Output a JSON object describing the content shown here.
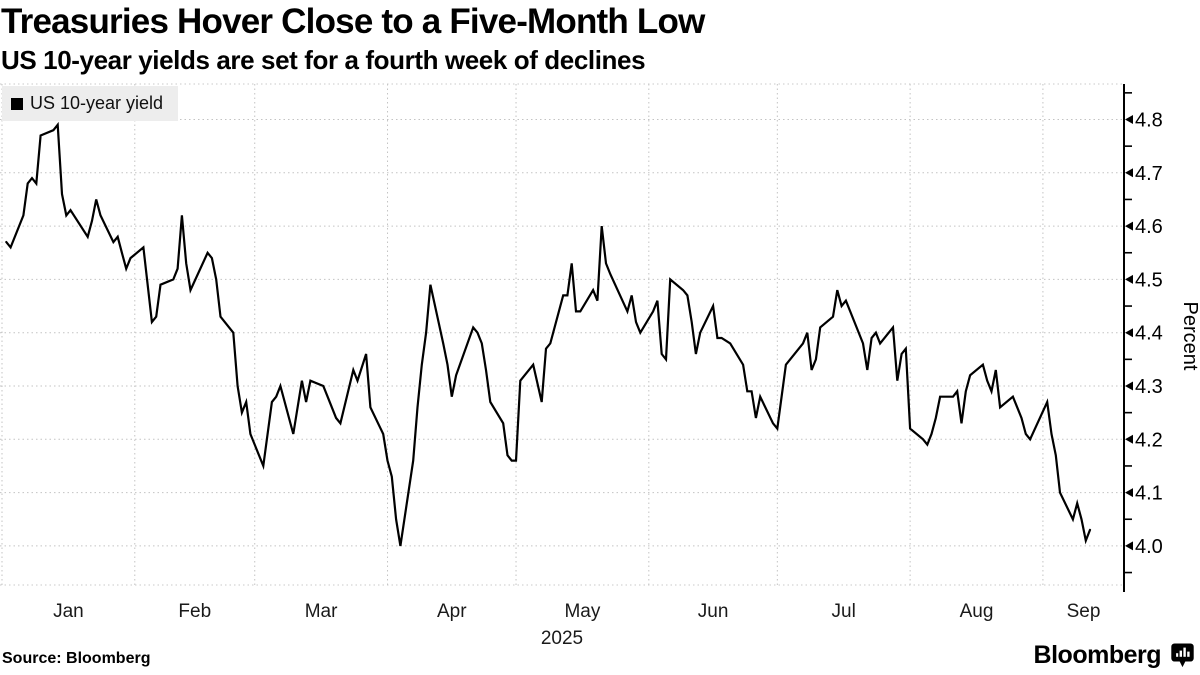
{
  "header": {
    "title": "Treasuries Hover Close to a Five-Month Low",
    "subtitle": "US 10-year yields are set for a fourth week of declines"
  },
  "legend": {
    "label": "US 10-year yield",
    "swatch_color": "#000000",
    "background": "#ededed"
  },
  "footer": {
    "source": "Source: Bloomberg",
    "logo_text": "Bloomberg",
    "logo_icon": "bloomberg-bubble-bars-icon"
  },
  "chart_data": {
    "type": "line",
    "title": "Treasuries Hover Close to a Five-Month Low",
    "subtitle": "US 10-year yields are set for a fourth week of declines",
    "x_axis": {
      "tick_labels": [
        "Jan",
        "Feb",
        "Mar",
        "Apr",
        "May",
        "Jun",
        "Jul",
        "Aug",
        "Sep"
      ],
      "year_label": "2025",
      "gridlines": "month-starts"
    },
    "y_axis": {
      "label": "Percent",
      "ticks": [
        4.0,
        4.1,
        4.2,
        4.3,
        4.4,
        4.5,
        4.6,
        4.7,
        4.8
      ],
      "minor_tick_step": 0.05,
      "ylim": [
        3.92,
        4.87
      ],
      "side": "right"
    },
    "grid": {
      "style": "dotted",
      "color": "#c3c3c3"
    },
    "line_color": "#000000",
    "series": [
      {
        "name": "US 10-year yield",
        "unit": "percent",
        "dates": [
          "1/2",
          "1/3",
          "1/6",
          "1/7",
          "1/8",
          "1/9",
          "1/10",
          "1/13",
          "1/14",
          "1/15",
          "1/16",
          "1/17",
          "1/21",
          "1/22",
          "1/23",
          "1/24",
          "1/27",
          "1/28",
          "1/29",
          "1/30",
          "1/31",
          "2/3",
          "2/5",
          "2/6",
          "2/7",
          "2/10",
          "2/11",
          "2/12",
          "2/13",
          "2/14",
          "2/18",
          "2/19",
          "2/20",
          "2/21",
          "2/24",
          "2/25",
          "2/26",
          "2/27",
          "2/28",
          "3/3",
          "3/5",
          "3/6",
          "3/7",
          "3/10",
          "3/12",
          "3/13",
          "3/14",
          "3/17",
          "3/18",
          "3/20",
          "3/21",
          "3/24",
          "3/25",
          "3/27",
          "3/28",
          "3/31",
          "4/1",
          "4/2",
          "4/3",
          "4/4",
          "4/7",
          "4/8",
          "4/9",
          "4/10",
          "4/11",
          "4/14",
          "4/15",
          "4/16",
          "4/17",
          "4/21",
          "4/22",
          "4/23",
          "4/24",
          "4/25",
          "4/28",
          "4/29",
          "4/30",
          "5/1",
          "5/2",
          "5/5",
          "5/7",
          "5/8",
          "5/9",
          "5/12",
          "5/13",
          "5/14",
          "5/15",
          "5/16",
          "5/19",
          "5/20",
          "5/21",
          "5/22",
          "5/23",
          "5/27",
          "5/28",
          "5/29",
          "5/30",
          "6/2",
          "6/3",
          "6/4",
          "6/5",
          "6/6",
          "6/9",
          "6/10",
          "6/11",
          "6/12",
          "6/13",
          "6/16",
          "6/17",
          "6/18",
          "6/20",
          "6/23",
          "6/24",
          "6/25",
          "6/26",
          "6/27",
          "6/30",
          "7/1",
          "7/2",
          "7/3",
          "7/7",
          "7/8",
          "7/9",
          "7/10",
          "7/11",
          "7/14",
          "7/15",
          "7/16",
          "7/17",
          "7/18",
          "7/21",
          "7/22",
          "7/23",
          "7/24",
          "7/25",
          "7/28",
          "7/29",
          "7/30",
          "7/31",
          "8/1",
          "8/4",
          "8/5",
          "8/6",
          "8/7",
          "8/8",
          "8/11",
          "8/12",
          "8/13",
          "8/14",
          "8/15",
          "8/18",
          "8/19",
          "8/20",
          "8/21",
          "8/22",
          "8/25",
          "8/26",
          "8/27",
          "8/28",
          "8/29",
          "9/2",
          "9/3",
          "9/4",
          "9/5",
          "9/8",
          "9/9",
          "9/10",
          "9/11",
          "9/12"
        ],
        "values": [
          4.57,
          4.56,
          4.62,
          4.68,
          4.69,
          4.68,
          4.77,
          4.78,
          4.79,
          4.66,
          4.62,
          4.63,
          4.58,
          4.61,
          4.65,
          4.62,
          4.57,
          4.58,
          4.55,
          4.52,
          4.54,
          4.56,
          4.42,
          4.43,
          4.49,
          4.5,
          4.52,
          4.62,
          4.53,
          4.48,
          4.55,
          4.54,
          4.5,
          4.43,
          4.4,
          4.3,
          4.25,
          4.27,
          4.21,
          4.15,
          4.27,
          4.28,
          4.3,
          4.21,
          4.31,
          4.27,
          4.31,
          4.3,
          4.28,
          4.24,
          4.23,
          4.33,
          4.31,
          4.36,
          4.26,
          4.21,
          4.16,
          4.13,
          4.05,
          4.0,
          4.16,
          4.26,
          4.34,
          4.4,
          4.49,
          4.38,
          4.34,
          4.28,
          4.32,
          4.41,
          4.4,
          4.38,
          4.33,
          4.27,
          4.23,
          4.17,
          4.16,
          4.16,
          4.31,
          4.34,
          4.27,
          4.37,
          4.38,
          4.47,
          4.47,
          4.53,
          4.44,
          4.44,
          4.48,
          4.46,
          4.6,
          4.53,
          4.51,
          4.44,
          4.47,
          4.42,
          4.4,
          4.44,
          4.46,
          4.36,
          4.35,
          4.5,
          4.48,
          4.47,
          4.42,
          4.36,
          4.4,
          4.45,
          4.39,
          4.39,
          4.38,
          4.34,
          4.29,
          4.29,
          4.24,
          4.28,
          4.23,
          4.22,
          4.28,
          4.34,
          4.38,
          4.4,
          4.33,
          4.35,
          4.41,
          4.43,
          4.48,
          4.45,
          4.46,
          4.44,
          4.38,
          4.33,
          4.39,
          4.4,
          4.38,
          4.41,
          4.31,
          4.36,
          4.37,
          4.22,
          4.2,
          4.19,
          4.21,
          4.24,
          4.28,
          4.28,
          4.29,
          4.23,
          4.29,
          4.32,
          4.34,
          4.31,
          4.29,
          4.33,
          4.26,
          4.28,
          4.26,
          4.24,
          4.21,
          4.2,
          4.27,
          4.21,
          4.17,
          4.1,
          4.05,
          4.08,
          4.05,
          4.01,
          4.03
        ]
      }
    ]
  }
}
